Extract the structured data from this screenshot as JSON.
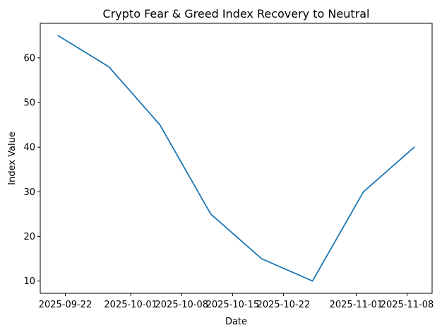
{
  "chart_data": {
    "type": "line",
    "title": "Crypto Fear & Greed Index Recovery to Neutral",
    "xlabel": "Date",
    "ylabel": "Index Value",
    "x": [
      "2025-09-21",
      "2025-09-28",
      "2025-10-05",
      "2025-10-12",
      "2025-10-19",
      "2025-10-26",
      "2025-11-02",
      "2025-11-09"
    ],
    "values": [
      65,
      58,
      45,
      25,
      15,
      10,
      30,
      40
    ],
    "x_tick_labels": [
      "2025-09-22",
      "2025-10-01",
      "2025-10-08",
      "2025-10-15",
      "2025-10-22",
      "2025-11-01",
      "2025-11-08"
    ],
    "y_ticks": [
      10,
      20,
      30,
      40,
      50,
      60
    ],
    "ylim": [
      7.25,
      67.75
    ],
    "x_margin": 0.05,
    "grid": false,
    "legend": "none",
    "line_color": "#1f77b4",
    "axis_color": "#000000",
    "text_color": "#000000",
    "background": "#ffffff"
  }
}
